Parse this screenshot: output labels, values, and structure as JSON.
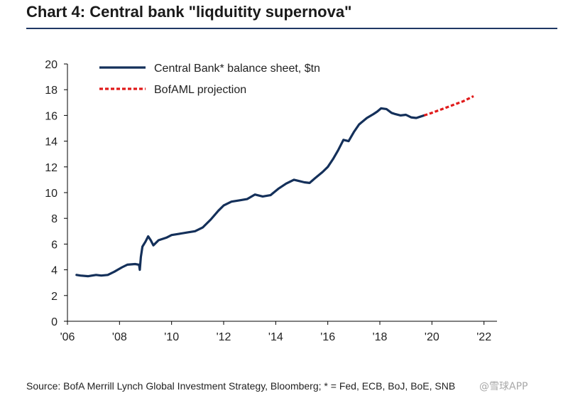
{
  "header": {
    "title": "Chart 4: Central bank \"liqduitity supernova\""
  },
  "footer": {
    "source": "Source: BofA Merrill Lynch Global Investment Strategy, Bloomberg; * = Fed, ECB, BoJ, BoE, SNB",
    "watermark": "@雪球APP"
  },
  "chart_data": {
    "type": "line",
    "title": "Chart 4: Central bank \"liqduitity supernova\"",
    "xlabel": "",
    "ylabel": "",
    "xlim": [
      2006.0,
      2022.5
    ],
    "ylim": [
      0,
      20
    ],
    "x_ticks": [
      2006,
      2008,
      2010,
      2012,
      2014,
      2016,
      2018,
      2020,
      2022
    ],
    "x_tick_labels": [
      "'06",
      "'08",
      "'10",
      "'12",
      "'14",
      "'16",
      "'18",
      "'20",
      "'22"
    ],
    "y_ticks": [
      0,
      2,
      4,
      6,
      8,
      10,
      12,
      14,
      16,
      18,
      20
    ],
    "y_tick_labels": [
      "0",
      "2",
      "4",
      "6",
      "8",
      "10",
      "12",
      "14",
      "16",
      "18",
      "20"
    ],
    "grid": false,
    "legend_position": "top-left",
    "series": [
      {
        "name": "Central Bank* balance sheet, $tn",
        "color": "#14305a",
        "style": "solid",
        "points": [
          [
            2006.35,
            3.6
          ],
          [
            2006.5,
            3.55
          ],
          [
            2006.8,
            3.5
          ],
          [
            2007.1,
            3.6
          ],
          [
            2007.3,
            3.55
          ],
          [
            2007.55,
            3.6
          ],
          [
            2007.8,
            3.85
          ],
          [
            2008.1,
            4.2
          ],
          [
            2008.3,
            4.4
          ],
          [
            2008.6,
            4.45
          ],
          [
            2008.75,
            4.4
          ],
          [
            2008.78,
            4.0
          ],
          [
            2008.82,
            5.0
          ],
          [
            2008.88,
            5.8
          ],
          [
            2009.0,
            6.2
          ],
          [
            2009.1,
            6.6
          ],
          [
            2009.2,
            6.3
          ],
          [
            2009.3,
            5.9
          ],
          [
            2009.5,
            6.3
          ],
          [
            2009.8,
            6.5
          ],
          [
            2010.0,
            6.7
          ],
          [
            2010.3,
            6.8
          ],
          [
            2010.6,
            6.9
          ],
          [
            2010.9,
            7.0
          ],
          [
            2011.2,
            7.3
          ],
          [
            2011.5,
            7.9
          ],
          [
            2011.8,
            8.6
          ],
          [
            2012.0,
            9.0
          ],
          [
            2012.3,
            9.3
          ],
          [
            2012.6,
            9.4
          ],
          [
            2012.9,
            9.5
          ],
          [
            2013.2,
            9.85
          ],
          [
            2013.5,
            9.7
          ],
          [
            2013.8,
            9.8
          ],
          [
            2014.1,
            10.3
          ],
          [
            2014.4,
            10.7
          ],
          [
            2014.7,
            11.0
          ],
          [
            2014.9,
            10.9
          ],
          [
            2015.1,
            10.8
          ],
          [
            2015.3,
            10.75
          ],
          [
            2015.5,
            11.1
          ],
          [
            2015.8,
            11.6
          ],
          [
            2016.0,
            12.0
          ],
          [
            2016.2,
            12.6
          ],
          [
            2016.4,
            13.3
          ],
          [
            2016.6,
            14.1
          ],
          [
            2016.8,
            14.0
          ],
          [
            2017.0,
            14.7
          ],
          [
            2017.2,
            15.3
          ],
          [
            2017.5,
            15.8
          ],
          [
            2017.75,
            16.1
          ],
          [
            2017.9,
            16.3
          ],
          [
            2018.05,
            16.55
          ],
          [
            2018.25,
            16.5
          ],
          [
            2018.45,
            16.2
          ],
          [
            2018.6,
            16.1
          ],
          [
            2018.8,
            16.0
          ],
          [
            2019.0,
            16.05
          ],
          [
            2019.2,
            15.85
          ],
          [
            2019.4,
            15.8
          ],
          [
            2019.55,
            15.9
          ],
          [
            2019.7,
            16.0
          ]
        ]
      },
      {
        "name": "BofAML projection",
        "color": "#e01a1a",
        "style": "dashed",
        "points": [
          [
            2019.7,
            16.0
          ],
          [
            2020.0,
            16.2
          ],
          [
            2020.4,
            16.5
          ],
          [
            2020.8,
            16.8
          ],
          [
            2021.2,
            17.1
          ],
          [
            2021.6,
            17.5
          ]
        ]
      }
    ]
  }
}
